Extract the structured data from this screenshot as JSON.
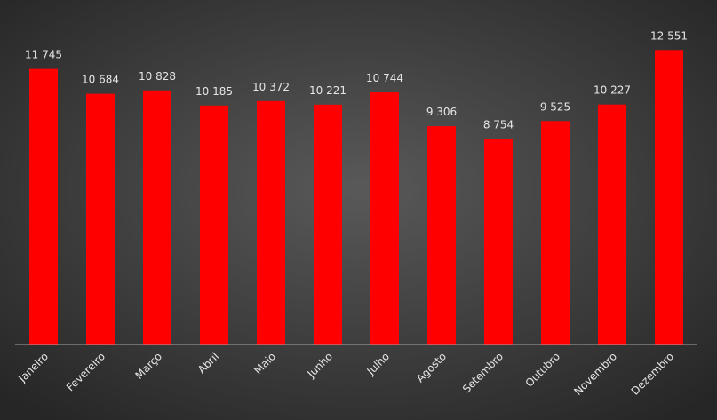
{
  "chart_data": {
    "type": "bar",
    "categories": [
      "Janeiro",
      "Fevereiro",
      "Março",
      "Abril",
      "Maio",
      "Junho",
      "Julho",
      "Agosto",
      "Setembro",
      "Outubro",
      "Novembro",
      "Dezembro"
    ],
    "values": [
      11745,
      10684,
      10828,
      10185,
      10372,
      10221,
      10744,
      9306,
      8754,
      9525,
      10227,
      12551
    ],
    "value_labels": [
      "11 745",
      "10 684",
      "10 828",
      "10 185",
      "10 372",
      "10 221",
      "10 744",
      "9 306",
      "8 754",
      "9 525",
      "10 227",
      "12 551"
    ],
    "color": "#ff0000",
    "ylim": [
      0,
      14000
    ]
  }
}
